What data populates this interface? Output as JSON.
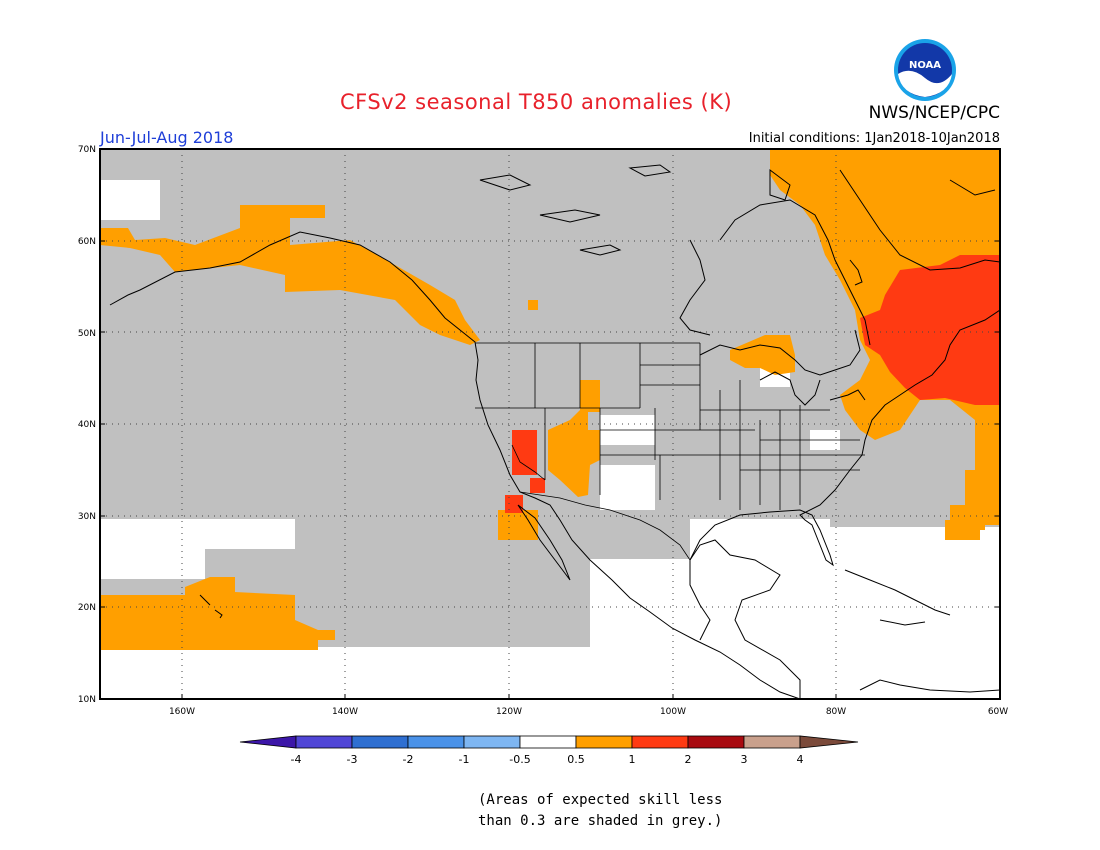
{
  "header": {
    "title": "CFSv2 seasonal T850 anomalies (K)",
    "season": "Jun-Jul-Aug 2018",
    "initial_conditions": "Initial conditions: 1Jan2018-10Jan2018",
    "agency": "NWS/NCEP/CPC",
    "logo_text": "NOAA",
    "logo_icon": "noaa-logo-icon"
  },
  "map": {
    "projection": "equirectangular",
    "lon_range": [
      -170,
      -60
    ],
    "lat_range": [
      10,
      70
    ],
    "lat_labels": [
      "70N",
      "60N",
      "50N",
      "40N",
      "30N",
      "20N",
      "10N"
    ],
    "lon_labels": [
      "160W",
      "140W",
      "120W",
      "100W",
      "80W",
      "60W"
    ],
    "grid": "dotted",
    "colors": {
      "skill_mask": "#c0c0c0",
      "land_outline": "#000000",
      "background": "#ffffff"
    }
  },
  "legend": {
    "tick_labels": [
      "-4",
      "-3",
      "-2",
      "-1",
      "-0.5",
      "0.5",
      "1",
      "2",
      "3",
      "4"
    ],
    "colors": [
      "#3c16a8",
      "#5046d6",
      "#2f6fd1",
      "#4a92e8",
      "#7eb6f2",
      "#ffffff",
      "#ff9f00",
      "#ff3a12",
      "#a80a10",
      "#c9a08c",
      "#7b4a3a"
    ]
  },
  "skill_note": {
    "line1": "(Areas of expected skill less",
    "line2": "than 0.3 are shaded in grey.)"
  }
}
